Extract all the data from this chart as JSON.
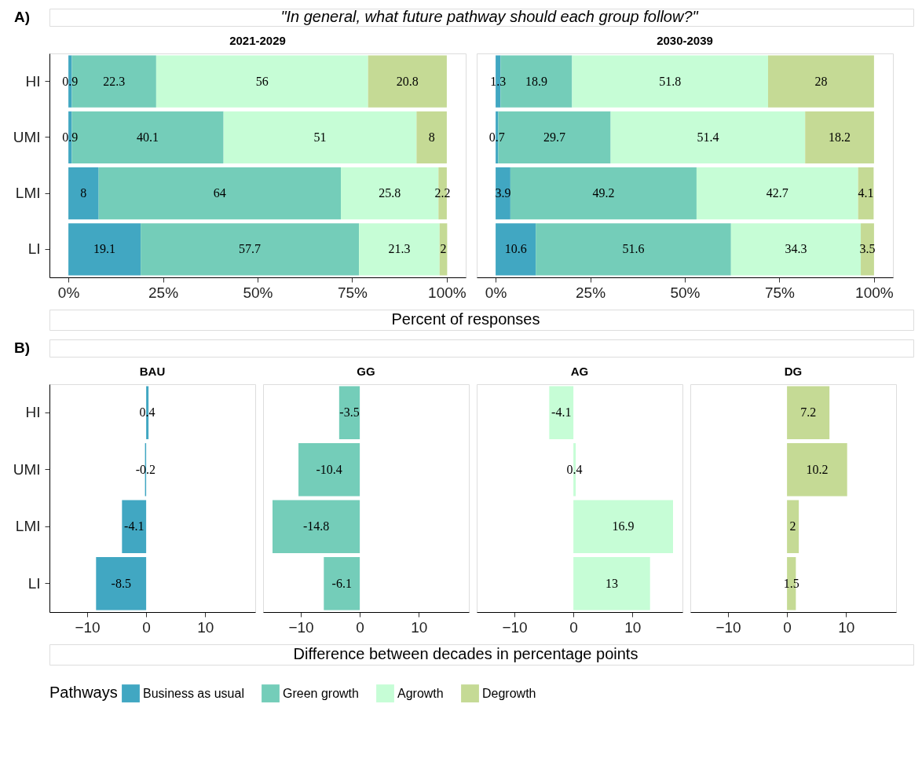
{
  "chart_data": [
    {
      "type": "bar",
      "orientation": "horizontal",
      "stacked": true,
      "title": "2021-2029",
      "annotations": [
        "A)",
        "\"In general, what future pathway should each group follow?\""
      ],
      "xlabel": "Percent of responses",
      "categories": [
        "HI",
        "UMI",
        "LMI",
        "LI"
      ],
      "series": [
        {
          "name": "Business as usual",
          "color": "#41a7c2",
          "values": [
            0.9,
            0.9,
            8,
            19.1
          ]
        },
        {
          "name": "Green growth",
          "color": "#74cdb9",
          "values": [
            22.3,
            40.1,
            64,
            57.7
          ]
        },
        {
          "name": "Agrowth",
          "color": "#c6fdd6",
          "values": [
            56,
            51,
            25.8,
            21.3
          ]
        },
        {
          "name": "Degrowth",
          "color": "#c5da95",
          "values": [
            20.8,
            8,
            2.2,
            2
          ]
        }
      ],
      "xlim": [
        -5,
        105
      ],
      "xticks": [
        {
          "value": 0,
          "label": "0%"
        },
        {
          "value": 25,
          "label": "25%"
        },
        {
          "value": 50,
          "label": "50%"
        },
        {
          "value": 75,
          "label": "75%"
        },
        {
          "value": 100,
          "label": "100%"
        }
      ],
      "data_labels": true,
      "legend": "bottom",
      "legend_title": "Pathways"
    },
    {
      "type": "bar",
      "orientation": "horizontal",
      "stacked": true,
      "title": "2030-2039",
      "categories": [
        "HI",
        "UMI",
        "LMI",
        "LI"
      ],
      "series": [
        {
          "name": "Business as usual",
          "color": "#41a7c2",
          "values": [
            1.3,
            0.7,
            3.9,
            10.6
          ]
        },
        {
          "name": "Green growth",
          "color": "#74cdb9",
          "values": [
            18.9,
            29.7,
            49.2,
            51.6
          ]
        },
        {
          "name": "Agrowth",
          "color": "#c6fdd6",
          "values": [
            51.8,
            51.4,
            42.7,
            34.3
          ]
        },
        {
          "name": "Degrowth",
          "color": "#c5da95",
          "values": [
            28,
            18.2,
            4.1,
            3.5
          ]
        }
      ],
      "xlim": [
        -5,
        105
      ],
      "xticks": [
        {
          "value": 0,
          "label": "0%"
        },
        {
          "value": 25,
          "label": "25%"
        },
        {
          "value": 50,
          "label": "50%"
        },
        {
          "value": 75,
          "label": "75%"
        },
        {
          "value": 100,
          "label": "100%"
        }
      ],
      "data_labels": true,
      "tick_labels": "x"
    },
    {
      "type": "bar",
      "orientation": "horizontal",
      "title": "BAU",
      "annotations": [
        "B)"
      ],
      "xlabel": "Difference between decades in percentage points",
      "categories": [
        "HI",
        "UMI",
        "LMI",
        "LI"
      ],
      "series": [
        {
          "color": "#41a7c2",
          "values": [
            0.4,
            -0.2,
            -4.1,
            -8.5
          ]
        }
      ],
      "xlim": [
        -16.4,
        18.5
      ],
      "xticks": [
        -10,
        0,
        10
      ],
      "data_labels": true
    },
    {
      "type": "bar",
      "orientation": "horizontal",
      "title": "GG",
      "categories": [
        "HI",
        "UMI",
        "LMI",
        "LI"
      ],
      "series": [
        {
          "color": "#74cdb9",
          "values": [
            -3.5,
            -10.4,
            -14.8,
            -6.1
          ]
        }
      ],
      "xlim": [
        -16.4,
        18.5
      ],
      "xticks": [
        -10,
        0,
        10
      ],
      "data_labels": true,
      "tick_labels": "x"
    },
    {
      "type": "bar",
      "orientation": "horizontal",
      "title": "AG",
      "categories": [
        "HI",
        "UMI",
        "LMI",
        "LI"
      ],
      "series": [
        {
          "color": "#c6fdd6",
          "values": [
            -4.1,
            0.4,
            16.9,
            13
          ]
        }
      ],
      "xlim": [
        -16.4,
        18.5
      ],
      "xticks": [
        -10,
        0,
        10
      ],
      "data_labels": true,
      "tick_labels": "x"
    },
    {
      "type": "bar",
      "orientation": "horizontal",
      "title": "DG",
      "categories": [
        "HI",
        "UMI",
        "LMI",
        "LI"
      ],
      "series": [
        {
          "color": "#c5da95",
          "values": [
            7.2,
            10.2,
            2,
            1.5
          ]
        }
      ],
      "xlim": [
        -16.4,
        18.5
      ],
      "xticks": [
        -10,
        0,
        10
      ],
      "data_labels": true,
      "tick_labels": "x"
    }
  ]
}
